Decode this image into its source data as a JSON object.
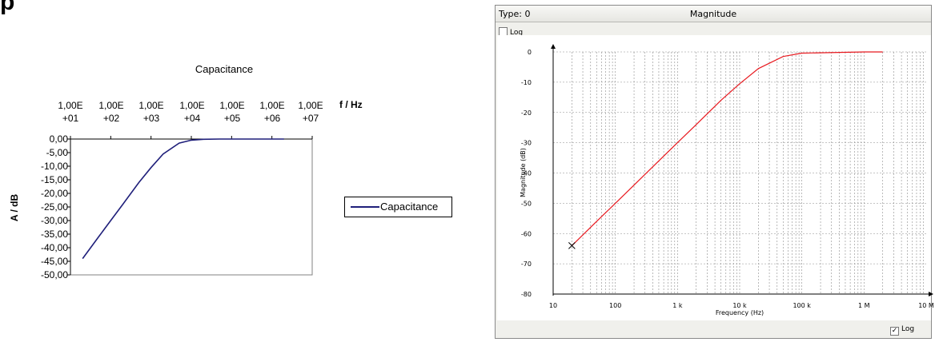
{
  "page_fragment": "p",
  "chart_data": [
    {
      "type": "line",
      "title": "Capacitance",
      "xlabel": "f / Hz",
      "ylabel": "A / dB",
      "x_scale": "log",
      "x_axis_position": "top",
      "xlim": [
        10,
        10000000
      ],
      "x_tick_labels": [
        [
          "1,00E",
          "+01"
        ],
        [
          "1,00E",
          "+02"
        ],
        [
          "1,00E",
          "+03"
        ],
        [
          "1,00E",
          "+04"
        ],
        [
          "1,00E",
          "+05"
        ],
        [
          "1,00E",
          "+06"
        ],
        [
          "1,00E",
          "+07"
        ]
      ],
      "ylim": [
        -50,
        0
      ],
      "y_tick_labels": [
        "0,00",
        "-5,00",
        "-10,00",
        "-15,00",
        "-20,00",
        "-25,00",
        "-30,00",
        "-35,00",
        "-40,00",
        "-45,00",
        "-50,00"
      ],
      "grid": false,
      "legend_position": "right",
      "series": [
        {
          "name": "Capacitance",
          "color": "#1f1f7a",
          "x": [
            20,
            50,
            100,
            200,
            500,
            1000,
            2000,
            5000,
            10000,
            20000,
            50000,
            100000,
            1000000,
            2000000
          ],
          "y": [
            -44,
            -36,
            -30,
            -24,
            -16,
            -10.5,
            -5.5,
            -1.5,
            -0.4,
            -0.1,
            0,
            0,
            0,
            0
          ]
        }
      ]
    },
    {
      "type": "line",
      "window_type": "Type: 0",
      "title": "Magnitude",
      "xlabel": "Frequency (Hz)",
      "ylabel": "Magnitude (dB)",
      "x_scale": "log",
      "xlim": [
        10,
        10000000
      ],
      "x_tick_labels": [
        "10",
        "100",
        "1 k",
        "10 k",
        "100 k",
        "1 M",
        "10 M"
      ],
      "ylim": [
        -80,
        0
      ],
      "y_tick_labels": [
        "0",
        "-10",
        "-20",
        "-30",
        "-40",
        "-50",
        "-60",
        "-70",
        "-80"
      ],
      "grid": true,
      "y_log_checkbox": {
        "label": "Log",
        "checked": false
      },
      "x_log_checkbox": {
        "label": "Log",
        "checked": true
      },
      "series": [
        {
          "color": "#e8191f",
          "x": [
            20,
            50,
            100,
            200,
            500,
            1000,
            2000,
            5000,
            10000,
            20000,
            50000,
            100000,
            1000000,
            2000000
          ],
          "y": [
            -64,
            -56,
            -50,
            -44,
            -36,
            -30,
            -24,
            -16,
            -10.5,
            -5.5,
            -1.5,
            -0.4,
            0,
            0
          ]
        }
      ],
      "marker": {
        "symbol": "x",
        "x": 20,
        "y": -64
      }
    }
  ]
}
